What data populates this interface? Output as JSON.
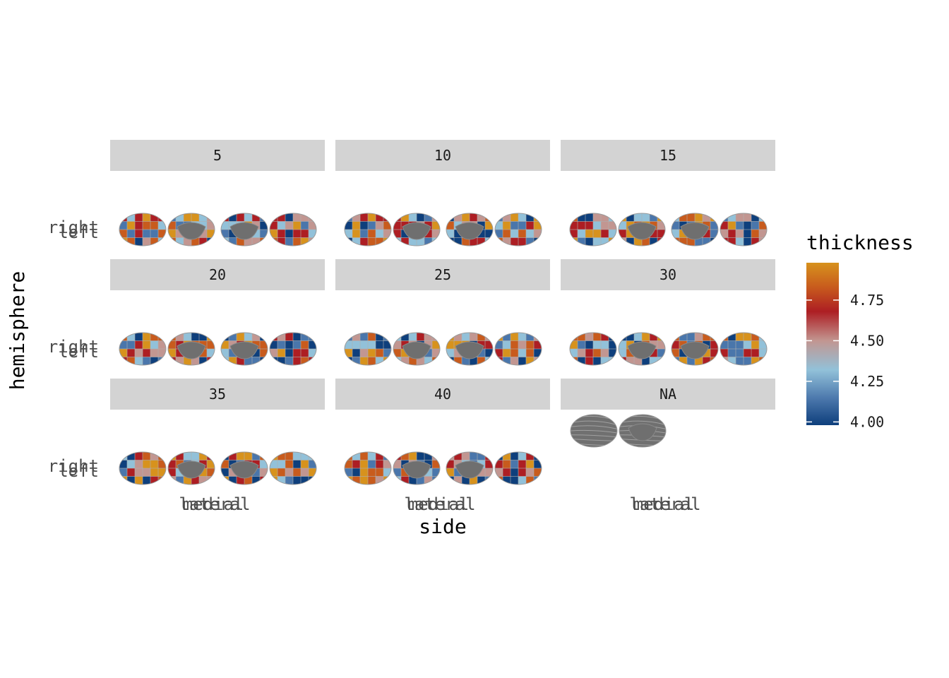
{
  "chart_data": {
    "type": "faceted-brain-atlas",
    "facet_variable": "age",
    "facets": [
      {
        "label": "5",
        "has_data": true
      },
      {
        "label": "10",
        "has_data": true
      },
      {
        "label": "15",
        "has_data": true
      },
      {
        "label": "20",
        "has_data": true
      },
      {
        "label": "25",
        "has_data": true
      },
      {
        "label": "30",
        "has_data": true
      },
      {
        "label": "35",
        "has_data": true
      },
      {
        "label": "40",
        "has_data": true
      },
      {
        "label": "NA",
        "has_data": false
      }
    ],
    "xlabel": "side",
    "ylabel": "hemisphere",
    "x_tick_labels": [
      "lateral",
      "medial"
    ],
    "y_tick_labels": [
      "right",
      "left"
    ],
    "legend": {
      "title": "thickness",
      "breaks": [
        4.0,
        4.25,
        4.5,
        4.75
      ],
      "break_labels": [
        "4.00",
        "4.25",
        "4.50",
        "4.75"
      ],
      "range": [
        3.98,
        4.98
      ]
    },
    "palette": [
      "#0e3f7c",
      "#4a76ab",
      "#92c1d9",
      "#c29691",
      "#ad1e23",
      "#c85b1d",
      "#d7921d"
    ]
  }
}
